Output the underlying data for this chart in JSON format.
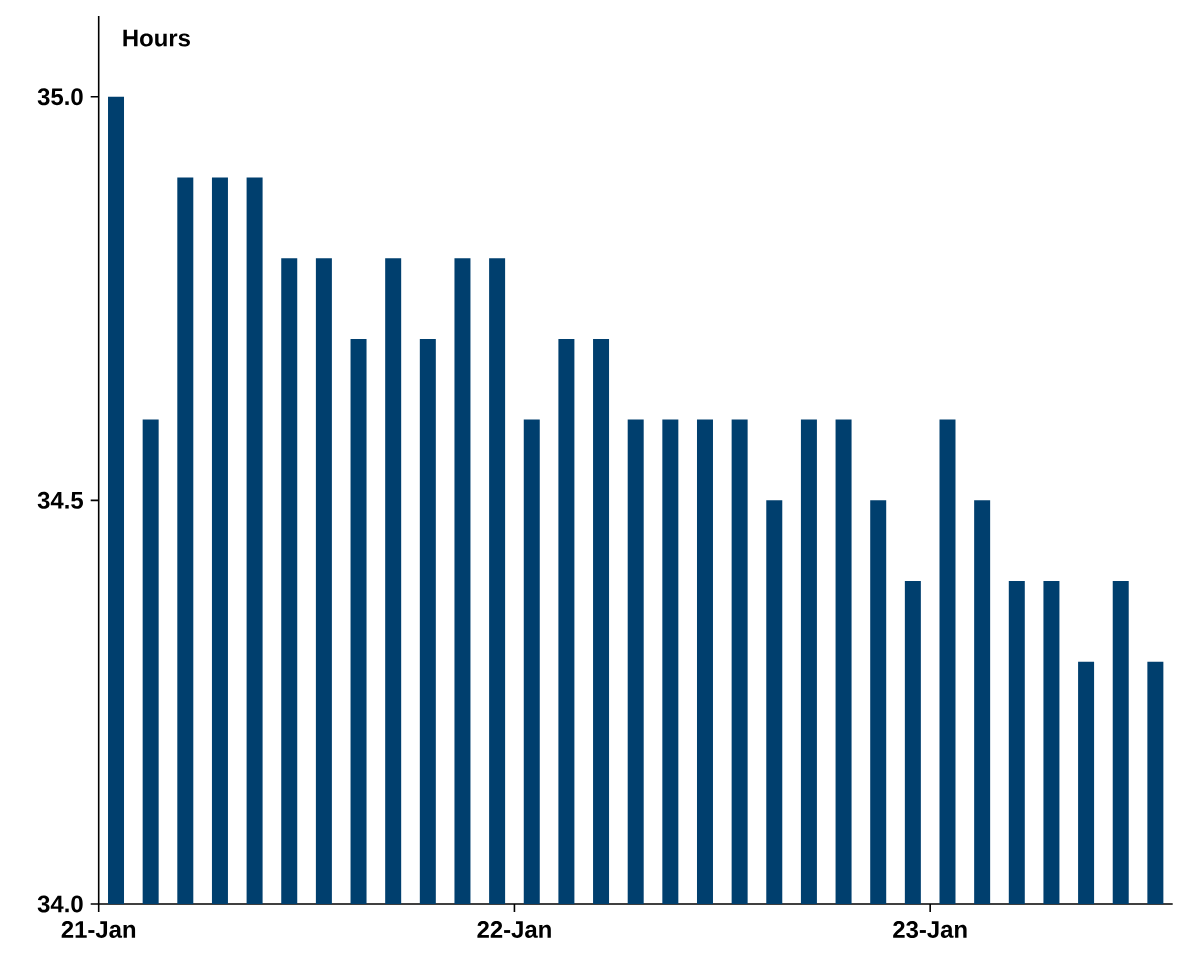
{
  "chart_data": {
    "type": "bar",
    "ylabel": "Hours",
    "categories": [
      "21-Jan",
      null,
      null,
      null,
      null,
      null,
      null,
      null,
      null,
      null,
      null,
      null,
      "22-Jan",
      null,
      null,
      null,
      null,
      null,
      null,
      null,
      null,
      null,
      null,
      null,
      "23-Jan",
      null,
      null,
      null,
      null,
      null,
      null
    ],
    "values": [
      35.0,
      34.6,
      34.9,
      34.9,
      34.9,
      34.8,
      34.8,
      34.7,
      34.8,
      34.7,
      34.8,
      34.8,
      34.6,
      34.7,
      34.7,
      34.6,
      34.6,
      34.6,
      34.6,
      34.5,
      34.6,
      34.6,
      34.5,
      34.4,
      34.6,
      34.5,
      34.4,
      34.4,
      34.3,
      34.4,
      34.3
    ],
    "color": "#003f6e",
    "ylim": [
      34.0,
      35.1
    ],
    "yticks": [
      {
        "value": 34.0,
        "label": "34.0"
      },
      {
        "value": 34.5,
        "label": "34.5"
      },
      {
        "value": 35.0,
        "label": "35.0"
      }
    ]
  }
}
